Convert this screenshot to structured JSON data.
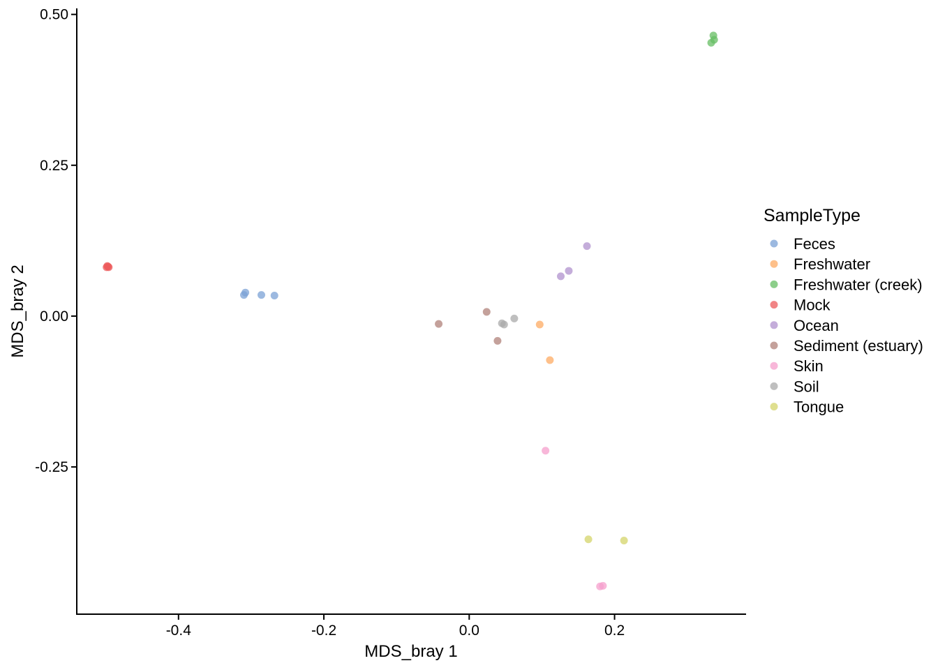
{
  "chart_data": {
    "type": "scatter",
    "title": "",
    "xlabel": "MDS_bray 1",
    "ylabel": "MDS_bray 2",
    "xlim": [
      -0.54,
      0.38
    ],
    "ylim": [
      -0.494,
      0.51
    ],
    "xticks": [
      -0.4,
      -0.2,
      0.0,
      0.2
    ],
    "xtick_labels": [
      "-0.4",
      "-0.2",
      "0.0",
      "0.2"
    ],
    "yticks": [
      -0.25,
      0.0,
      0.25,
      0.5
    ],
    "ytick_labels": [
      "-0.25",
      "0.00",
      "0.25",
      "0.50"
    ],
    "grid": false,
    "legend": {
      "title": "SampleType",
      "position": "right"
    },
    "series": [
      {
        "name": "Feces",
        "color": "#7ba1d6",
        "points": [
          [
            -0.31,
            0.035
          ],
          [
            -0.308,
            0.039
          ],
          [
            -0.286,
            0.035
          ],
          [
            -0.268,
            0.034
          ]
        ]
      },
      {
        "name": "Freshwater",
        "color": "#fdab63",
        "points": [
          [
            0.097,
            -0.014
          ],
          [
            0.111,
            -0.073
          ]
        ]
      },
      {
        "name": "Freshwater (creek)",
        "color": "#66bd63",
        "points": [
          [
            0.333,
            0.453
          ],
          [
            0.336,
            0.465
          ],
          [
            0.337,
            0.458
          ]
        ]
      },
      {
        "name": "Mock",
        "color": "#ec5b5c",
        "points": [
          [
            -0.499,
            0.081
          ],
          [
            -0.498,
            0.083
          ],
          [
            -0.497,
            0.082
          ],
          [
            -0.496,
            0.081
          ]
        ]
      },
      {
        "name": "Ocean",
        "color": "#b092ce",
        "points": [
          [
            0.162,
            0.116
          ],
          [
            0.137,
            0.075
          ],
          [
            0.126,
            0.066
          ]
        ]
      },
      {
        "name": "Sediment (estuary)",
        "color": "#b0817a",
        "points": [
          [
            -0.042,
            -0.013
          ],
          [
            0.024,
            0.007
          ],
          [
            0.039,
            -0.041
          ]
        ]
      },
      {
        "name": "Skin",
        "color": "#f59fcc",
        "points": [
          [
            0.105,
            -0.223
          ],
          [
            0.18,
            -0.448
          ],
          [
            0.184,
            -0.447
          ]
        ]
      },
      {
        "name": "Soil",
        "color": "#a9a9a9",
        "points": [
          [
            0.045,
            -0.012
          ],
          [
            0.048,
            -0.014
          ],
          [
            0.062,
            -0.004
          ]
        ]
      },
      {
        "name": "Tongue",
        "color": "#d4d46a",
        "points": [
          [
            0.164,
            -0.37
          ],
          [
            0.213,
            -0.372
          ]
        ]
      }
    ]
  }
}
